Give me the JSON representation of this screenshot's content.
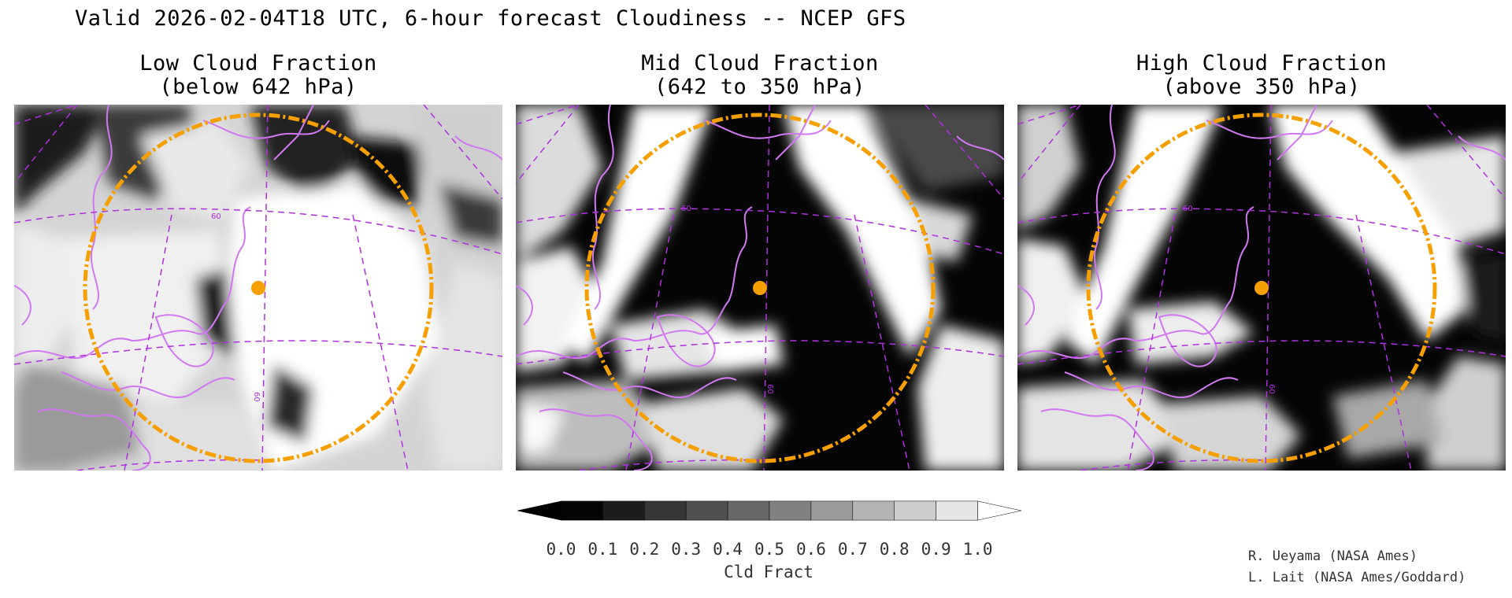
{
  "main_title": "Valid 2026-02-04T18 UTC, 6-hour forecast Cloudiness -- NCEP GFS",
  "panels": [
    {
      "title_line1": "Low Cloud Fraction",
      "title_line2": "(below 642 hPa)",
      "grid_label_top": "60",
      "grid_label_bottom": "60"
    },
    {
      "title_line1": "Mid Cloud Fraction",
      "title_line2": "(642 to 350 hPa)",
      "grid_label_top": "60",
      "grid_label_bottom": "60"
    },
    {
      "title_line1": "High Cloud Fraction",
      "title_line2": "(above 350 hPa)",
      "grid_label_top": "60",
      "grid_label_bottom": "60"
    }
  ],
  "colorbar": {
    "title": "Cld Fract",
    "ticks": [
      "0.0",
      "0.1",
      "0.2",
      "0.3",
      "0.4",
      "0.5",
      "0.6",
      "0.7",
      "0.8",
      "0.9",
      "1.0"
    ],
    "colors": [
      "#050505",
      "#1c1c1c",
      "#363636",
      "#4f4f4f",
      "#686868",
      "#818181",
      "#9b9b9b",
      "#b4b4b4",
      "#cdcdcd",
      "#e6e6e6"
    ],
    "under_color": "#000000",
    "over_color": "#ffffff"
  },
  "credits": [
    "R. Ueyama (NASA Ames)",
    "L. Lait (NASA Ames/Goddard)"
  ],
  "colors": {
    "coastline": "#d078f0",
    "gridline": "#b030e0",
    "range_ring": "#f5a000",
    "site_marker": "#f5a000"
  }
}
